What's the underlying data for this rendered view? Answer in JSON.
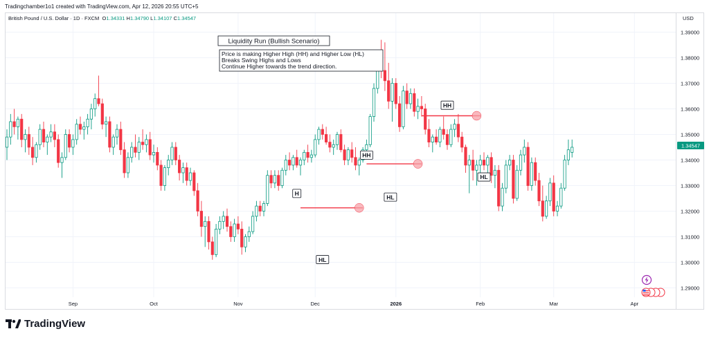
{
  "header": {
    "credit": "Tradingchamber1o1 created with TradingView.com, Apr 12, 2026 20:55 UTC+5"
  },
  "legend": {
    "symbol": "British Pound / U.S. Dollar · 1D · FXCM",
    "o_label": "O",
    "o": "1.34331",
    "h_label": "H",
    "h": "1.34790",
    "l_label": "L",
    "l": "1.34107",
    "c_label": "C",
    "c": "1.34547"
  },
  "price_scale": {
    "currency": "USD",
    "last_price": "1.34547"
  },
  "annotations": {
    "title": "Liquidity Run (Bullish Scenario)",
    "lines": [
      "Price is making Higher High (HH) and Higher Low (HL)",
      "Breaks Swing Highs and Lows",
      "Continue Higher towards the trend direction."
    ]
  },
  "brand": {
    "name": "TradingView"
  },
  "colors": {
    "up": "#089981",
    "down": "#f23645",
    "level_line": "#f23645",
    "marker": "#f7a1a8"
  },
  "chart_data": {
    "type": "candlestick",
    "title": "British Pound / U.S. Dollar · 1D · FXCM",
    "xlabel": "",
    "ylabel": "",
    "ylim": [
      1.285,
      1.395
    ],
    "y_ticks": [
      1.29,
      1.3,
      1.31,
      1.32,
      1.33,
      1.34,
      1.35,
      1.36,
      1.37,
      1.38,
      1.39
    ],
    "y_tick_labels": [
      "1.29000",
      "1.30000",
      "1.31000",
      "1.32000",
      "1.33000",
      "1.34000",
      "1.35000",
      "1.36000",
      "1.37000",
      "1.38000",
      "1.39000"
    ],
    "x_ticks": [
      {
        "label": "Sep",
        "index": 18,
        "bold": false
      },
      {
        "label": "Oct",
        "index": 40,
        "bold": false
      },
      {
        "label": "Nov",
        "index": 63,
        "bold": false
      },
      {
        "label": "Dec",
        "index": 84,
        "bold": false
      },
      {
        "label": "2026",
        "index": 106,
        "bold": true
      },
      {
        "label": "Feb",
        "index": 129,
        "bold": false
      },
      {
        "label": "Mar",
        "index": 149,
        "bold": false
      },
      {
        "label": "Apr",
        "index": 171,
        "bold": false
      }
    ],
    "candles": [
      [
        1.345,
        1.352,
        1.34,
        1.349
      ],
      [
        1.349,
        1.358,
        1.346,
        1.355
      ],
      [
        1.355,
        1.36,
        1.35,
        1.353
      ],
      [
        1.353,
        1.357,
        1.348,
        1.356
      ],
      [
        1.356,
        1.358,
        1.345,
        1.348
      ],
      [
        1.348,
        1.352,
        1.343,
        1.35
      ],
      [
        1.35,
        1.353,
        1.342,
        1.345
      ],
      [
        1.345,
        1.349,
        1.338,
        1.341
      ],
      [
        1.341,
        1.347,
        1.339,
        1.346
      ],
      [
        1.346,
        1.354,
        1.344,
        1.352
      ],
      [
        1.352,
        1.355,
        1.345,
        1.347
      ],
      [
        1.347,
        1.35,
        1.342,
        1.349
      ],
      [
        1.349,
        1.354,
        1.347,
        1.351
      ],
      [
        1.351,
        1.354,
        1.345,
        1.348
      ],
      [
        1.348,
        1.35,
        1.337,
        1.339
      ],
      [
        1.339,
        1.343,
        1.333,
        1.341
      ],
      [
        1.341,
        1.352,
        1.34,
        1.35
      ],
      [
        1.35,
        1.352,
        1.343,
        1.345
      ],
      [
        1.345,
        1.35,
        1.342,
        1.348
      ],
      [
        1.348,
        1.356,
        1.346,
        1.354
      ],
      [
        1.354,
        1.357,
        1.35,
        1.352
      ],
      [
        1.352,
        1.355,
        1.348,
        1.353
      ],
      [
        1.353,
        1.358,
        1.35,
        1.356
      ],
      [
        1.356,
        1.362,
        1.352,
        1.36
      ],
      [
        1.36,
        1.366,
        1.357,
        1.364
      ],
      [
        1.364,
        1.373,
        1.361,
        1.362
      ],
      [
        1.362,
        1.364,
        1.352,
        1.354
      ],
      [
        1.354,
        1.357,
        1.349,
        1.355
      ],
      [
        1.355,
        1.357,
        1.343,
        1.345
      ],
      [
        1.345,
        1.35,
        1.342,
        1.349
      ],
      [
        1.349,
        1.354,
        1.346,
        1.352
      ],
      [
        1.352,
        1.355,
        1.342,
        1.344
      ],
      [
        1.344,
        1.347,
        1.333,
        1.335
      ],
      [
        1.335,
        1.343,
        1.333,
        1.341
      ],
      [
        1.341,
        1.347,
        1.339,
        1.345
      ],
      [
        1.345,
        1.35,
        1.341,
        1.343
      ],
      [
        1.343,
        1.349,
        1.34,
        1.347
      ],
      [
        1.347,
        1.352,
        1.344,
        1.346
      ],
      [
        1.346,
        1.35,
        1.343,
        1.348
      ],
      [
        1.348,
        1.351,
        1.34,
        1.342
      ],
      [
        1.342,
        1.346,
        1.339,
        1.343
      ],
      [
        1.343,
        1.345,
        1.336,
        1.338
      ],
      [
        1.338,
        1.34,
        1.328,
        1.33
      ],
      [
        1.33,
        1.338,
        1.328,
        1.337
      ],
      [
        1.337,
        1.342,
        1.334,
        1.34
      ],
      [
        1.34,
        1.347,
        1.338,
        1.345
      ],
      [
        1.345,
        1.347,
        1.338,
        1.34
      ],
      [
        1.34,
        1.342,
        1.332,
        1.335
      ],
      [
        1.335,
        1.339,
        1.331,
        1.337
      ],
      [
        1.337,
        1.339,
        1.33,
        1.332
      ],
      [
        1.332,
        1.337,
        1.33,
        1.335
      ],
      [
        1.335,
        1.336,
        1.326,
        1.328
      ],
      [
        1.328,
        1.331,
        1.318,
        1.32
      ],
      [
        1.32,
        1.324,
        1.31,
        1.314
      ],
      [
        1.314,
        1.318,
        1.306,
        1.316
      ],
      [
        1.316,
        1.318,
        1.305,
        1.308
      ],
      [
        1.308,
        1.31,
        1.301,
        1.303
      ],
      [
        1.303,
        1.315,
        1.302,
        1.313
      ],
      [
        1.313,
        1.318,
        1.311,
        1.316
      ],
      [
        1.316,
        1.32,
        1.313,
        1.318
      ],
      [
        1.318,
        1.321,
        1.312,
        1.314
      ],
      [
        1.314,
        1.316,
        1.308,
        1.31
      ],
      [
        1.31,
        1.317,
        1.308,
        1.315
      ],
      [
        1.315,
        1.318,
        1.311,
        1.313
      ],
      [
        1.313,
        1.316,
        1.303,
        1.306
      ],
      [
        1.306,
        1.311,
        1.304,
        1.31
      ],
      [
        1.31,
        1.314,
        1.308,
        1.312
      ],
      [
        1.312,
        1.32,
        1.311,
        1.318
      ],
      [
        1.318,
        1.324,
        1.316,
        1.322
      ],
      [
        1.322,
        1.324,
        1.318,
        1.32
      ],
      [
        1.32,
        1.324,
        1.318,
        1.323
      ],
      [
        1.323,
        1.336,
        1.322,
        1.334
      ],
      [
        1.334,
        1.336,
        1.329,
        1.331
      ],
      [
        1.331,
        1.336,
        1.329,
        1.334
      ],
      [
        1.334,
        1.336,
        1.328,
        1.33
      ],
      [
        1.33,
        1.337,
        1.329,
        1.336
      ],
      [
        1.336,
        1.342,
        1.334,
        1.34
      ],
      [
        1.34,
        1.343,
        1.336,
        1.338
      ],
      [
        1.338,
        1.342,
        1.336,
        1.341
      ],
      [
        1.341,
        1.344,
        1.337,
        1.338
      ],
      [
        1.338,
        1.341,
        1.334,
        1.34
      ],
      [
        1.34,
        1.344,
        1.338,
        1.343
      ],
      [
        1.343,
        1.346,
        1.339,
        1.341
      ],
      [
        1.341,
        1.344,
        1.339,
        1.342
      ],
      [
        1.342,
        1.35,
        1.341,
        1.348
      ],
      [
        1.348,
        1.353,
        1.346,
        1.352
      ],
      [
        1.352,
        1.354,
        1.348,
        1.35
      ],
      [
        1.35,
        1.353,
        1.346,
        1.347
      ],
      [
        1.347,
        1.35,
        1.343,
        1.345
      ],
      [
        1.345,
        1.348,
        1.342,
        1.346
      ],
      [
        1.346,
        1.351,
        1.344,
        1.35
      ],
      [
        1.35,
        1.352,
        1.343,
        1.344
      ],
      [
        1.344,
        1.346,
        1.338,
        1.34
      ],
      [
        1.34,
        1.345,
        1.338,
        1.344
      ],
      [
        1.344,
        1.347,
        1.339,
        1.341
      ],
      [
        1.341,
        1.345,
        1.336,
        1.338
      ],
      [
        1.338,
        1.341,
        1.334,
        1.34
      ],
      [
        1.34,
        1.345,
        1.339,
        1.344
      ],
      [
        1.344,
        1.348,
        1.342,
        1.346
      ],
      [
        1.346,
        1.358,
        1.345,
        1.357
      ],
      [
        1.357,
        1.37,
        1.355,
        1.368
      ],
      [
        1.368,
        1.382,
        1.366,
        1.38
      ],
      [
        1.38,
        1.387,
        1.372,
        1.375
      ],
      [
        1.375,
        1.386,
        1.367,
        1.371
      ],
      [
        1.371,
        1.378,
        1.36,
        1.363
      ],
      [
        1.363,
        1.372,
        1.355,
        1.37
      ],
      [
        1.37,
        1.372,
        1.36,
        1.362
      ],
      [
        1.362,
        1.365,
        1.351,
        1.353
      ],
      [
        1.353,
        1.369,
        1.352,
        1.367
      ],
      [
        1.367,
        1.37,
        1.36,
        1.362
      ],
      [
        1.362,
        1.368,
        1.36,
        1.366
      ],
      [
        1.366,
        1.368,
        1.357,
        1.359
      ],
      [
        1.359,
        1.364,
        1.356,
        1.361
      ],
      [
        1.361,
        1.365,
        1.357,
        1.36
      ],
      [
        1.36,
        1.362,
        1.35,
        1.352
      ],
      [
        1.352,
        1.356,
        1.345,
        1.347
      ],
      [
        1.347,
        1.35,
        1.343,
        1.349
      ],
      [
        1.349,
        1.352,
        1.346,
        1.347
      ],
      [
        1.347,
        1.353,
        1.345,
        1.352
      ],
      [
        1.352,
        1.357,
        1.348,
        1.35
      ],
      [
        1.35,
        1.352,
        1.344,
        1.346
      ],
      [
        1.346,
        1.354,
        1.345,
        1.352
      ],
      [
        1.352,
        1.356,
        1.349,
        1.354
      ],
      [
        1.354,
        1.358,
        1.347,
        1.349
      ],
      [
        1.349,
        1.351,
        1.343,
        1.345
      ],
      [
        1.345,
        1.346,
        1.335,
        1.338
      ],
      [
        1.338,
        1.342,
        1.327,
        1.34
      ],
      [
        1.34,
        1.344,
        1.332,
        1.336
      ],
      [
        1.336,
        1.34,
        1.33,
        1.338
      ],
      [
        1.338,
        1.342,
        1.334,
        1.34
      ],
      [
        1.34,
        1.343,
        1.336,
        1.338
      ],
      [
        1.338,
        1.342,
        1.335,
        1.341
      ],
      [
        1.341,
        1.343,
        1.331,
        1.334
      ],
      [
        1.334,
        1.338,
        1.329,
        1.336
      ],
      [
        1.336,
        1.338,
        1.32,
        1.322
      ],
      [
        1.322,
        1.331,
        1.32,
        1.329
      ],
      [
        1.329,
        1.34,
        1.327,
        1.338
      ],
      [
        1.338,
        1.342,
        1.336,
        1.34
      ],
      [
        1.34,
        1.342,
        1.323,
        1.325
      ],
      [
        1.325,
        1.338,
        1.324,
        1.336
      ],
      [
        1.336,
        1.344,
        1.334,
        1.342
      ],
      [
        1.342,
        1.348,
        1.339,
        1.345
      ],
      [
        1.345,
        1.347,
        1.328,
        1.33
      ],
      [
        1.33,
        1.341,
        1.328,
        1.339
      ],
      [
        1.339,
        1.341,
        1.33,
        1.332
      ],
      [
        1.332,
        1.335,
        1.322,
        1.324
      ],
      [
        1.324,
        1.33,
        1.316,
        1.318
      ],
      [
        1.318,
        1.326,
        1.317,
        1.324
      ],
      [
        1.324,
        1.333,
        1.322,
        1.331
      ],
      [
        1.331,
        1.334,
        1.318,
        1.32
      ],
      [
        1.32,
        1.324,
        1.318,
        1.322
      ],
      [
        1.322,
        1.331,
        1.321,
        1.329
      ],
      [
        1.329,
        1.342,
        1.328,
        1.34
      ],
      [
        1.34,
        1.348,
        1.338,
        1.344
      ],
      [
        1.343,
        1.348,
        1.341,
        1.345
      ]
    ],
    "levels": [
      {
        "label": "H",
        "price": 1.3213,
        "from_index": 80,
        "to_index": 97
      },
      {
        "label": "HH",
        "price": 1.3385,
        "from_index": 98,
        "to_index": 113
      },
      {
        "label": "HH",
        "price": 1.3573,
        "from_index": 113,
        "to_index": 129
      }
    ],
    "swing_labels": [
      {
        "label": "H",
        "index": 79,
        "price": 1.3245,
        "pos": "above"
      },
      {
        "label": "HL",
        "index": 86,
        "price": 1.3035,
        "pos": "below"
      },
      {
        "label": "HH",
        "index": 98,
        "price": 1.3395,
        "pos": "above"
      },
      {
        "label": "HL",
        "index": 103,
        "price": 1.3255,
        "pos": "right"
      },
      {
        "label": "HH",
        "index": 120,
        "price": 1.359,
        "pos": "above"
      },
      {
        "label": "HL",
        "index": 130,
        "price": 1.3358,
        "pos": "below"
      }
    ],
    "markers": [
      {
        "index": 96,
        "price": 1.3213
      },
      {
        "index": 112,
        "price": 1.3385
      },
      {
        "index": 128,
        "price": 1.3573
      }
    ]
  }
}
